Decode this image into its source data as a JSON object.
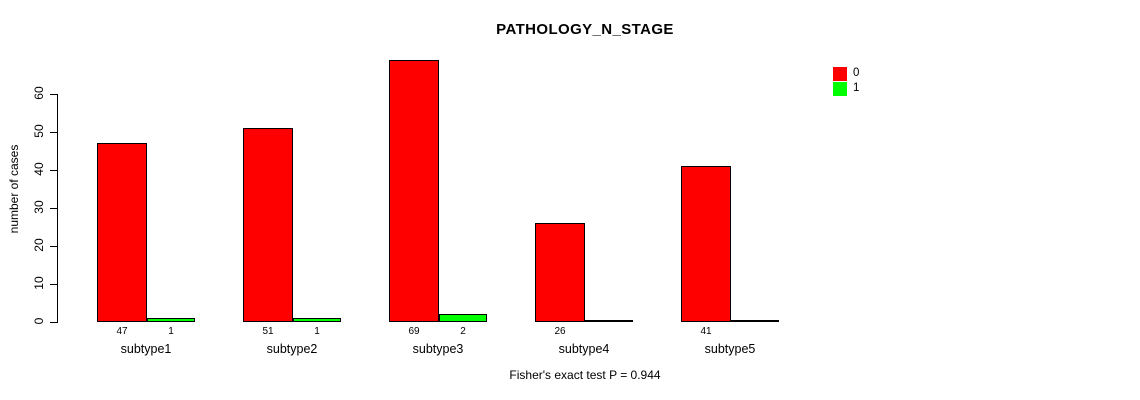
{
  "chart_data": {
    "type": "bar",
    "title": "PATHOLOGY_N_STAGE",
    "ylabel": "number of cases",
    "xlabel": "",
    "caption": "Fisher's exact test P = 0.944",
    "categories": [
      "subtype1",
      "subtype2",
      "subtype3",
      "subtype4",
      "subtype5"
    ],
    "series": [
      {
        "name": "0",
        "color": "#FF0000",
        "values": [
          47,
          51,
          69,
          26,
          41
        ]
      },
      {
        "name": "1",
        "color": "#00FF00",
        "values": [
          1,
          1,
          2,
          0,
          0
        ]
      }
    ],
    "bar_count_labels": [
      [
        "47",
        "1"
      ],
      [
        "51",
        "1"
      ],
      [
        "69",
        "2"
      ],
      [
        "26",
        ""
      ],
      [
        "41",
        ""
      ]
    ],
    "yticks": [
      0,
      10,
      20,
      30,
      40,
      50,
      60
    ],
    "ylim": [
      0,
      69
    ],
    "grid": false,
    "legend_position": "top-right"
  },
  "colors": {
    "background": "#FFFFFF",
    "text": "#000000",
    "axis": "#000000"
  }
}
